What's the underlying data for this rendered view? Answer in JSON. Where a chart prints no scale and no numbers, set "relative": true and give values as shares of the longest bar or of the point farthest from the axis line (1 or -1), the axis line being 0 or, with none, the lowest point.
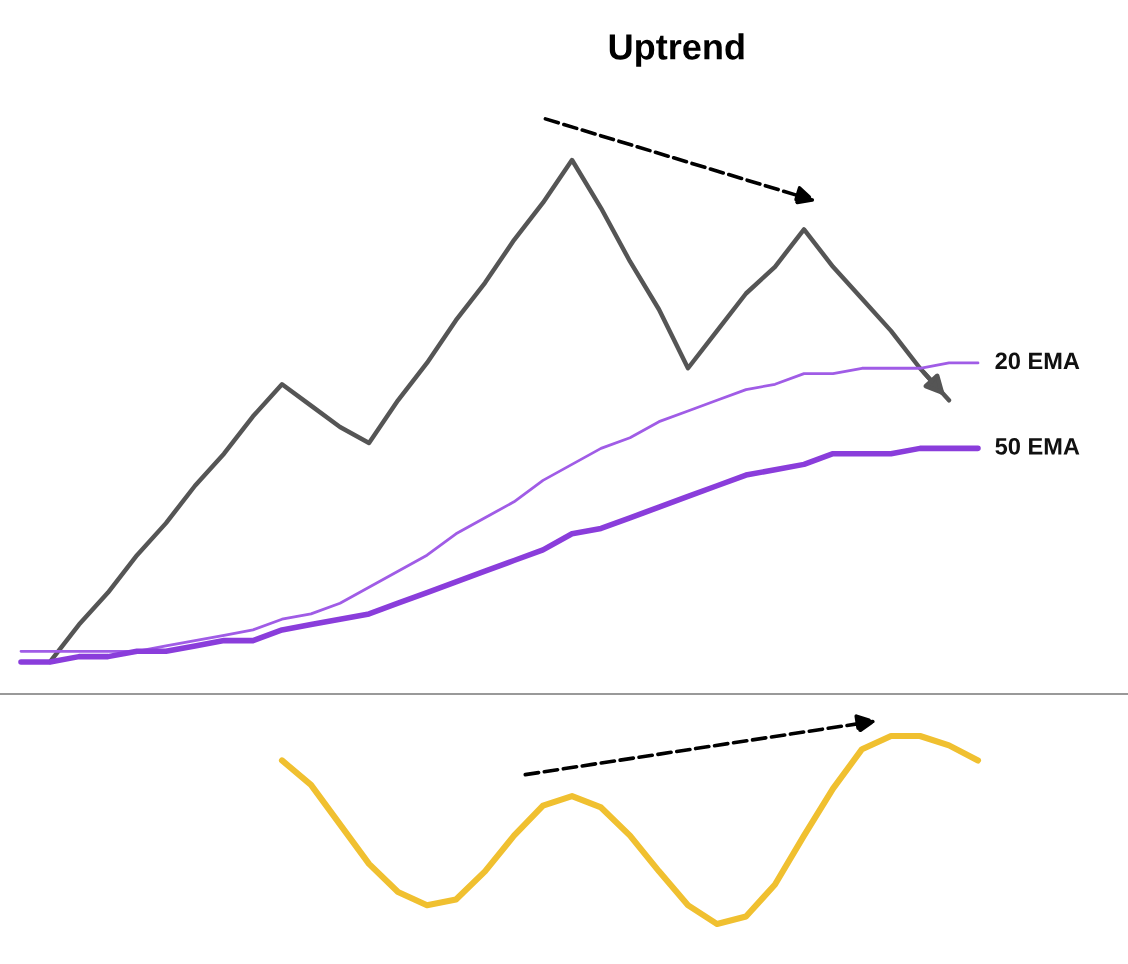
{
  "chart_data": [
    {
      "type": "line",
      "title": "Uptrend",
      "relative": true,
      "grid": false,
      "legend": false,
      "categories": [
        null,
        null,
        null,
        null,
        null,
        null,
        null,
        null,
        null,
        null,
        null,
        null,
        null,
        null,
        null,
        null,
        null,
        null,
        null,
        null,
        null,
        null,
        null,
        null,
        null,
        null,
        null,
        null,
        null,
        null,
        null,
        null,
        null,
        null,
        null
      ],
      "series": [
        {
          "color": "#555555",
          "values": [
            null,
            0.06,
            0.13,
            0.19,
            0.26,
            0.32,
            0.39,
            0.45,
            0.52,
            0.58,
            0.54,
            0.5,
            0.47,
            0.55,
            0.62,
            0.7,
            0.77,
            0.85,
            0.92,
            1.0,
            0.91,
            0.81,
            0.72,
            0.61,
            0.68,
            0.75,
            0.8,
            0.87,
            0.8,
            0.74,
            0.68,
            0.61,
            0.55,
            null,
            null
          ]
        },
        {
          "name": "20 EMA",
          "color": "#a05ce6",
          "values": [
            0.08,
            0.08,
            0.08,
            0.08,
            0.08,
            0.09,
            0.1,
            0.11,
            0.12,
            0.14,
            0.15,
            0.17,
            0.2,
            0.23,
            0.26,
            0.3,
            0.33,
            0.36,
            0.4,
            0.43,
            0.46,
            0.48,
            0.51,
            0.53,
            0.55,
            0.57,
            0.58,
            0.6,
            0.6,
            0.61,
            0.61,
            0.61,
            0.62,
            0.62,
            null
          ]
        },
        {
          "name": "50 EMA",
          "color": "#8a3ddb",
          "values": [
            0.06,
            0.06,
            0.07,
            0.07,
            0.08,
            0.08,
            0.09,
            0.1,
            0.1,
            0.12,
            0.13,
            0.14,
            0.15,
            0.17,
            0.19,
            0.21,
            0.23,
            0.25,
            0.27,
            0.3,
            0.31,
            0.33,
            0.35,
            0.37,
            0.39,
            0.41,
            0.42,
            0.43,
            0.45,
            0.45,
            0.45,
            0.46,
            0.46,
            0.46,
            null
          ]
        }
      ]
    },
    {
      "type": "line",
      "relative": true,
      "grid": false,
      "legend": false,
      "categories": [
        null,
        null,
        null,
        null,
        null,
        null,
        null,
        null,
        null,
        null,
        null,
        null,
        null,
        null,
        null,
        null,
        null,
        null,
        null,
        null,
        null,
        null,
        null,
        null,
        null,
        null,
        null,
        null,
        null,
        null,
        null,
        null,
        null,
        null,
        null
      ],
      "series": [
        {
          "color": "#f0c030",
          "values": [
            null,
            null,
            null,
            null,
            null,
            null,
            null,
            null,
            null,
            0.87,
            0.74,
            0.53,
            0.32,
            0.17,
            0.1,
            0.13,
            0.28,
            0.47,
            0.63,
            0.68,
            0.62,
            0.47,
            0.28,
            0.1,
            0.0,
            0.04,
            0.21,
            0.47,
            0.72,
            0.93,
            1.0,
            1.0,
            0.95,
            0.87,
            null
          ]
        }
      ]
    }
  ]
}
